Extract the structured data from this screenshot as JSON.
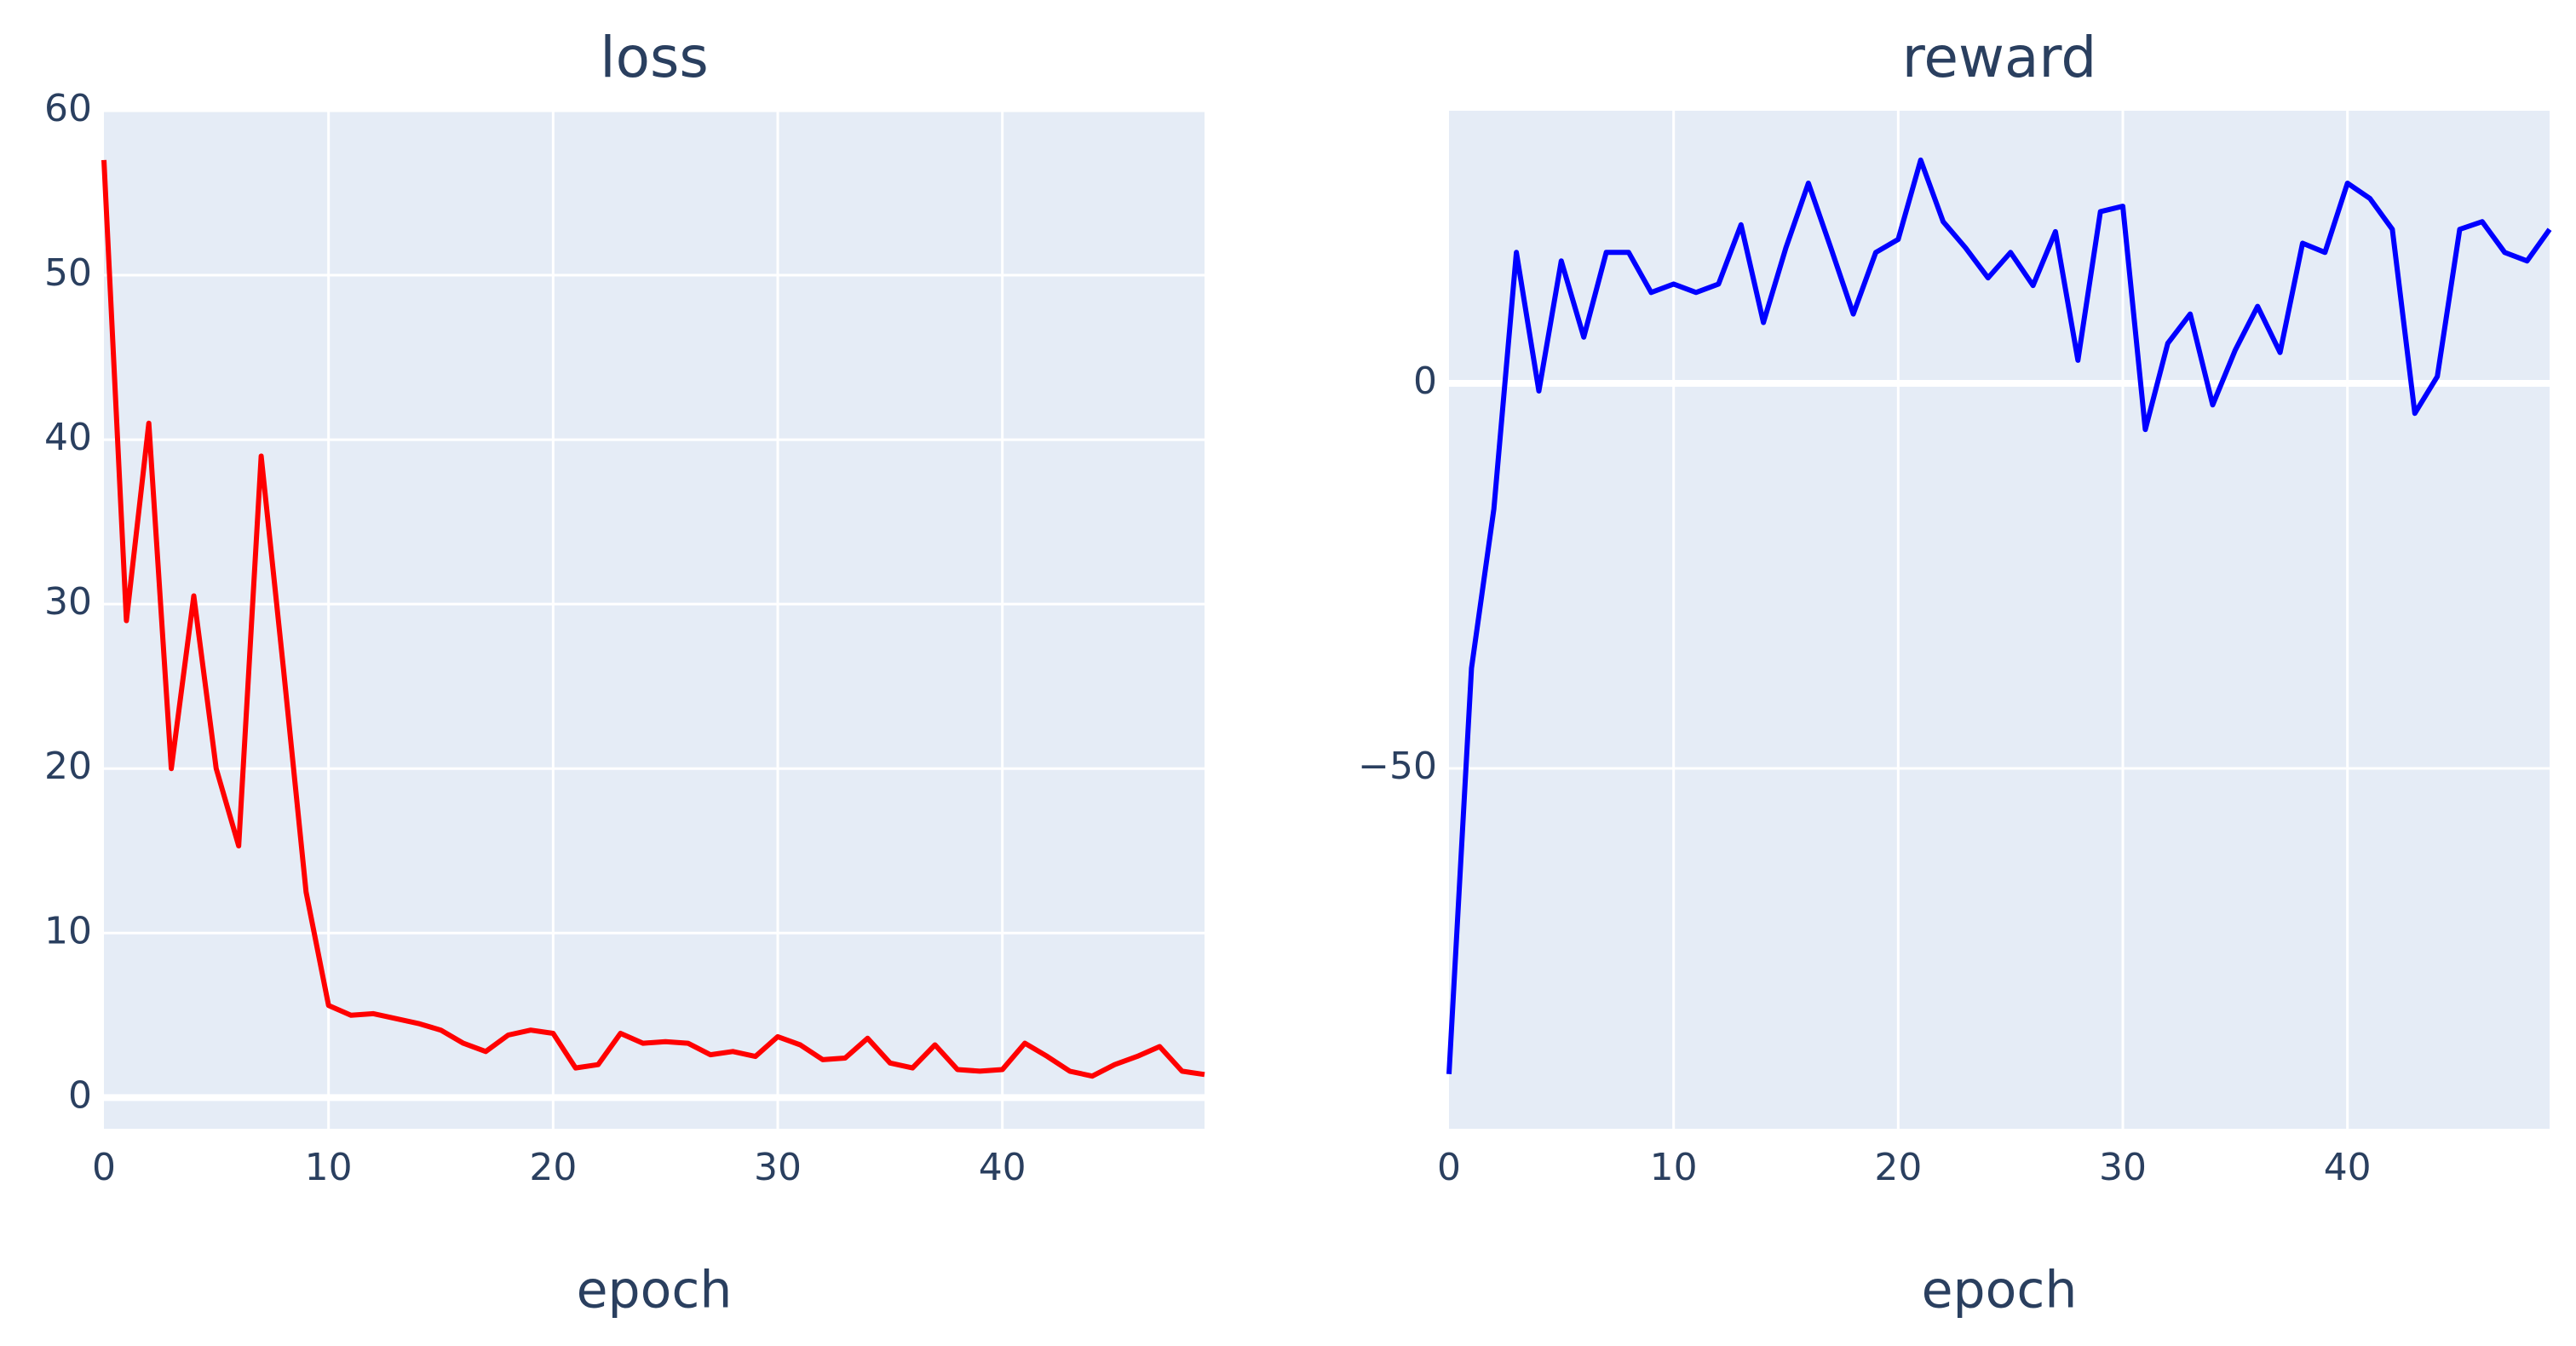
{
  "chart_data": [
    {
      "type": "line",
      "title": "loss",
      "x_label": "epoch",
      "color": "#ff0000",
      "grid": true,
      "x": [
        0,
        1,
        2,
        3,
        4,
        5,
        6,
        7,
        8,
        9,
        10,
        11,
        12,
        13,
        14,
        15,
        16,
        17,
        18,
        19,
        20,
        21,
        22,
        23,
        24,
        25,
        26,
        27,
        28,
        29,
        30,
        31,
        32,
        33,
        34,
        35,
        36,
        37,
        38,
        39,
        40,
        41,
        42,
        43,
        44,
        45,
        46,
        47,
        48,
        49
      ],
      "values": [
        57,
        29,
        41,
        20,
        30.5,
        20,
        15.3,
        39,
        26,
        12.5,
        5.6,
        5,
        5.1,
        4.8,
        4.5,
        4.1,
        3.3,
        2.8,
        3.8,
        4.1,
        3.9,
        1.8,
        2,
        3.9,
        3.3,
        3.4,
        3.3,
        2.6,
        2.8,
        2.5,
        3.7,
        3.2,
        2.3,
        2.4,
        3.6,
        2.1,
        1.8,
        3.2,
        1.7,
        1.6,
        1.7,
        3.3,
        2.5,
        1.6,
        1.3,
        2,
        2.5,
        3.1,
        1.6,
        1.4
      ],
      "xlim": [
        0,
        49
      ],
      "xticks": [
        0,
        10,
        20,
        30,
        40
      ],
      "ylim": [
        -1.9,
        60
      ],
      "yticks": [
        0,
        10,
        20,
        30,
        40,
        50,
        60
      ]
    },
    {
      "type": "line",
      "title": "reward",
      "x_label": "epoch",
      "color": "#0000ff",
      "grid": true,
      "x": [
        0,
        1,
        2,
        3,
        4,
        5,
        6,
        7,
        8,
        9,
        10,
        11,
        12,
        13,
        14,
        15,
        16,
        17,
        18,
        19,
        20,
        21,
        22,
        23,
        24,
        25,
        26,
        27,
        28,
        29,
        30,
        31,
        32,
        33,
        34,
        35,
        36,
        37,
        38,
        39,
        40,
        41,
        42,
        43,
        44,
        45,
        46,
        47,
        48,
        49
      ],
      "values": [
        -89.7,
        -37,
        -16.3,
        17,
        -1,
        15.9,
        6,
        17,
        17,
        11.8,
        12.9,
        11.8,
        12.9,
        20.6,
        7.9,
        17.6,
        26,
        17.6,
        9,
        17,
        18.7,
        29,
        21,
        17.6,
        13.7,
        17,
        12.7,
        19.7,
        3,
        22.3,
        23,
        -6,
        5.2,
        9,
        -2.8,
        4.3,
        10,
        4,
        18.2,
        17,
        26,
        24,
        20,
        -3.9,
        0.9,
        20,
        21,
        17,
        15.9,
        20
      ],
      "xlim": [
        0,
        49
      ],
      "xticks": [
        0,
        10,
        20,
        30,
        40
      ],
      "ylim": [
        -96.8,
        35.4
      ],
      "yticks": [
        {
          "value": -50,
          "label": "−50"
        },
        0
      ]
    }
  ]
}
